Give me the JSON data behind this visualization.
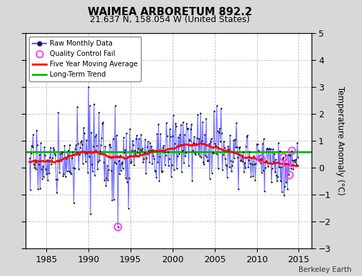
{
  "title": "WAIMEA ARBORETUM 892.2",
  "subtitle": "21.637 N, 158.054 W (United States)",
  "ylabel": "Temperature Anomaly (°C)",
  "xlim": [
    1982.5,
    2016.5
  ],
  "ylim": [
    -3,
    5
  ],
  "yticks": [
    -3,
    -2,
    -1,
    0,
    1,
    2,
    3,
    4,
    5
  ],
  "xticks": [
    1985,
    1990,
    1995,
    2000,
    2005,
    2010,
    2015
  ],
  "long_term_trend_y": 0.6,
  "background_color": "#d8d8d8",
  "plot_bg_color": "#ffffff",
  "watermark": "Berkeley Earth",
  "raw_line_color": "#5555ff",
  "raw_dot_color": "#111111",
  "qc_fail_color": "#ff44ff",
  "moving_avg_color": "#ff0000",
  "trend_color": "#00bb00",
  "title_fontsize": 11,
  "subtitle_fontsize": 9,
  "figsize": [
    5.24,
    4.0
  ],
  "dpi": 100
}
